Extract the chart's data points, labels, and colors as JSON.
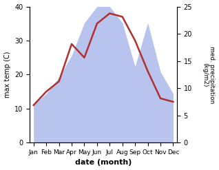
{
  "months": [
    "Jan",
    "Feb",
    "Mar",
    "Apr",
    "May",
    "Jun",
    "Jul",
    "Aug",
    "Sep",
    "Oct",
    "Nov",
    "Dec"
  ],
  "temperature": [
    11,
    15,
    18,
    29,
    25,
    35,
    38,
    37,
    30,
    21,
    13,
    12
  ],
  "precipitation": [
    7,
    9,
    12,
    16,
    22,
    25,
    25,
    22,
    14,
    22,
    13,
    9
  ],
  "temp_color": "#b03030",
  "precip_color": "#b8c4ee",
  "title": "",
  "xlabel": "date (month)",
  "ylabel_left": "max temp (C)",
  "ylabel_right": "med. precipitation\n(kg/m2)",
  "ylim_left": [
    0,
    40
  ],
  "ylim_right": [
    0,
    25
  ],
  "yticks_left": [
    0,
    10,
    20,
    30,
    40
  ],
  "yticks_right": [
    0,
    5,
    10,
    15,
    20,
    25
  ],
  "bg_color": "#ffffff",
  "line_width": 1.8
}
